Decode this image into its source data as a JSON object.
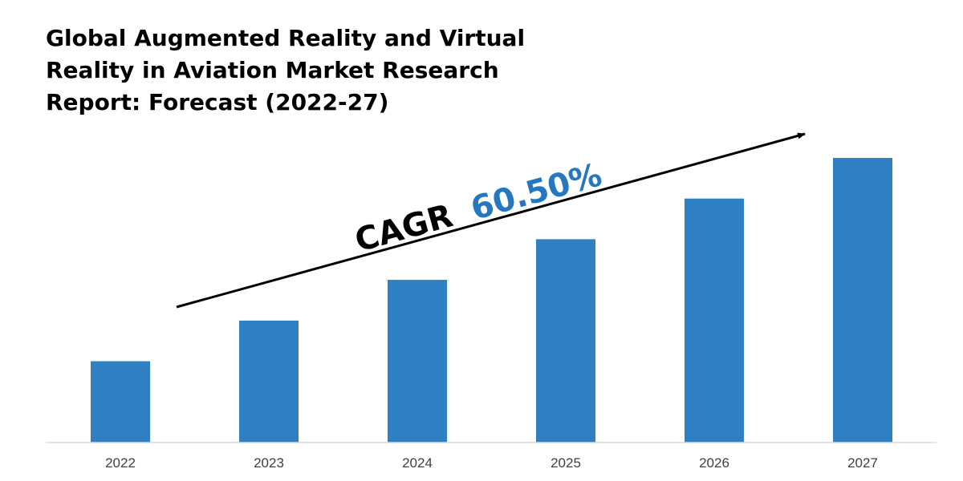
{
  "chart_data": {
    "type": "bar",
    "title": "Global Augmented Reality and Virtual Reality in Aviation Market Research Report: Forecast (2022-27)",
    "title_lines": [
      "Global Augmented Reality and Virtual",
      "Reality in Aviation Market Research",
      "Report: Forecast (2022-27)"
    ],
    "categories": [
      "2022",
      "2023",
      "2024",
      "2025",
      "2026",
      "2027"
    ],
    "values": [
      100,
      150,
      200,
      250,
      300,
      350
    ],
    "ylim": [
      0,
      350
    ],
    "xlabel": "",
    "ylabel": "",
    "grid": false,
    "legend": "none",
    "annotation": {
      "prefix": "CAGR",
      "value": "60.50%"
    }
  },
  "colors": {
    "bar": "#2e80c3",
    "axis": "#d9d9d9",
    "arrow": "#000000",
    "annotation_prefix": "#000000",
    "annotation_value": "#2577c0",
    "tick_text": "#404040",
    "title_text": "#000000"
  }
}
